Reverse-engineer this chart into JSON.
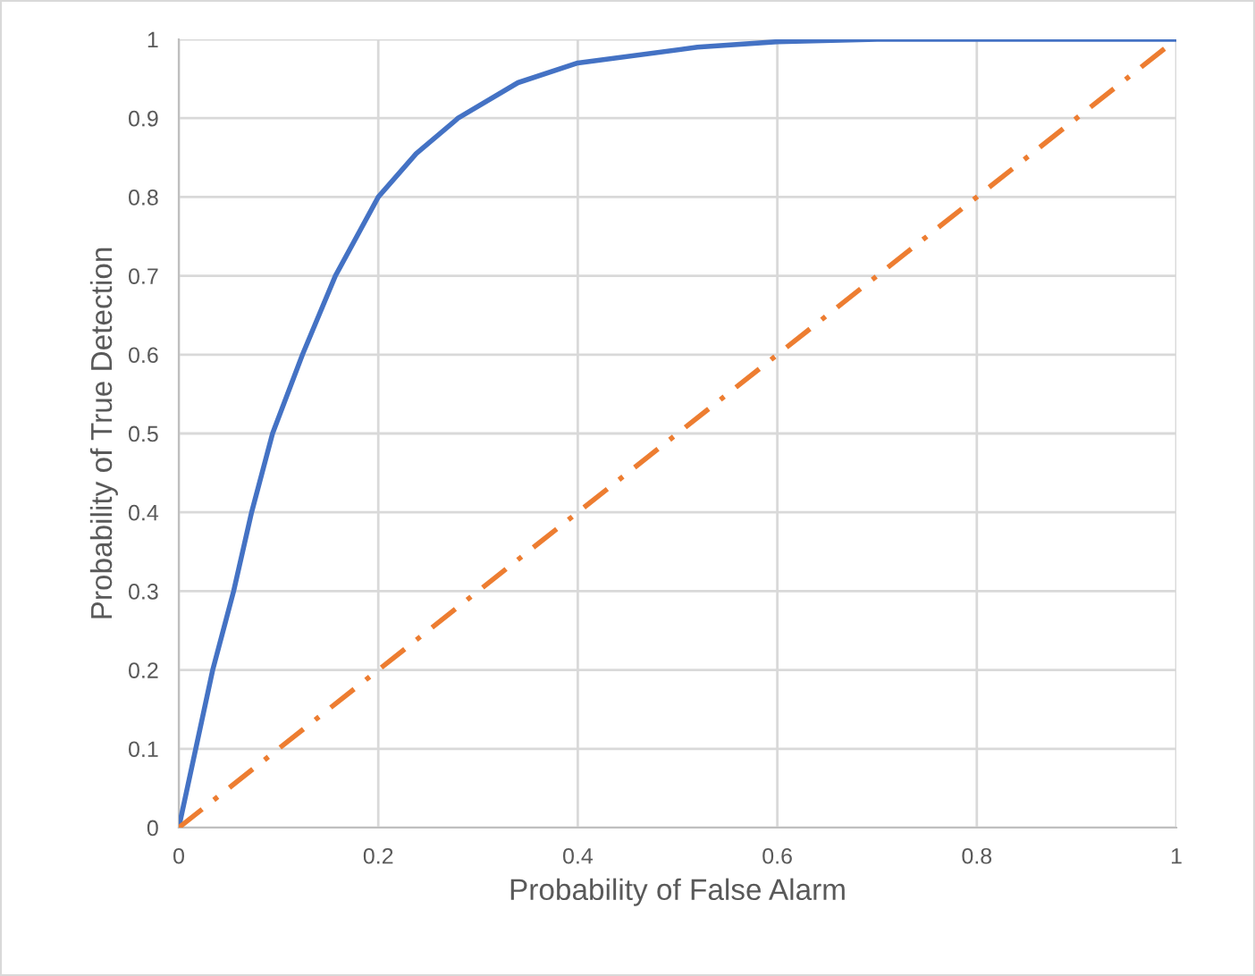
{
  "chart_data": {
    "type": "line",
    "xlabel": "Probability of False Alarm",
    "ylabel": "Probability of True Detection",
    "series": [
      {
        "color": "#4472c4",
        "line_style": "solid",
        "x": [
          0,
          0.034,
          0.055,
          0.073,
          0.094,
          0.124,
          0.157,
          0.2,
          0.238,
          0.28,
          0.34,
          0.4,
          0.52,
          0.6,
          0.7,
          0.8,
          0.9,
          1
        ],
        "values": [
          0,
          0.2,
          0.3,
          0.4,
          0.5,
          0.6,
          0.7,
          0.8,
          0.855,
          0.9,
          0.945,
          0.97,
          0.99,
          0.997,
          1,
          1,
          1,
          1
        ]
      },
      {
        "color": "#ed7d31",
        "line_style": "dashdot",
        "x": [
          0,
          1
        ],
        "values": [
          0,
          1
        ]
      }
    ],
    "xlim": [
      0,
      1
    ],
    "ylim": [
      0,
      1
    ],
    "xticks": [
      0,
      0.2,
      0.4,
      0.6,
      0.8,
      1
    ],
    "yticks": [
      0,
      0.1,
      0.2,
      0.3,
      0.4,
      0.5,
      0.6,
      0.7,
      0.8,
      0.9,
      1
    ],
    "grid": true,
    "marker": "none"
  }
}
